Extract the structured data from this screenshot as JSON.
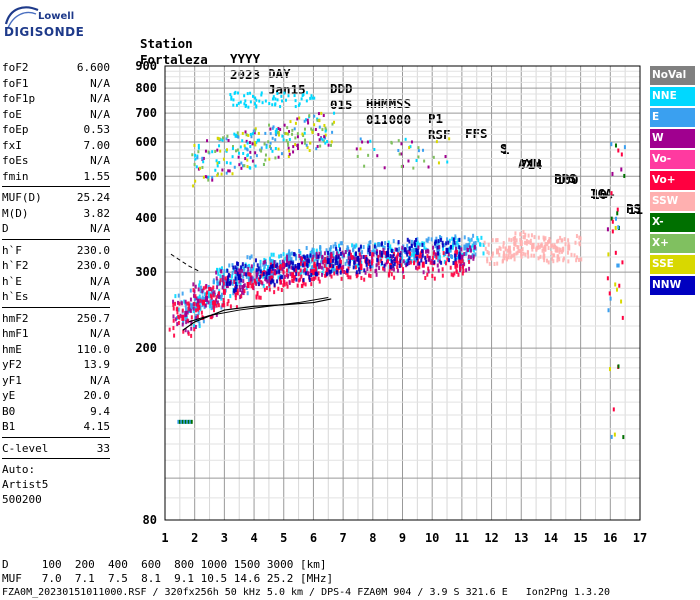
{
  "logo": {
    "top_text": "Lowell",
    "main_text": "DIGISONDE"
  },
  "header": {
    "line1": [
      "Station",
      "YYYY",
      "DAY",
      "DDD",
      "HHMMSS",
      "P1",
      "FFS",
      "S",
      "AXN",
      "PPS",
      "IGA",
      "PS"
    ],
    "line2": [
      "Fortaleza",
      "2023",
      "Jan15",
      "015",
      "011000",
      "RSF",
      "1",
      "714",
      "100",
      "10+",
      "11"
    ]
  },
  "sidebar": {
    "group1": [
      {
        "label": "foF2",
        "value": "6.600"
      },
      {
        "label": "foF1",
        "value": "N/A"
      },
      {
        "label": "foF1p",
        "value": "N/A"
      },
      {
        "label": "foE",
        "value": "N/A"
      },
      {
        "label": "foEp",
        "value": "0.53"
      },
      {
        "label": "fxI",
        "value": "7.00"
      },
      {
        "label": "foEs",
        "value": "N/A"
      },
      {
        "label": "fmin",
        "value": "1.55"
      }
    ],
    "group2": [
      {
        "label": "MUF(D)",
        "value": "25.24"
      },
      {
        "label": "M(D)",
        "value": "3.82"
      },
      {
        "label": "D",
        "value": "N/A"
      }
    ],
    "group3": [
      {
        "label": "h`F",
        "value": "230.0"
      },
      {
        "label": "h`F2",
        "value": "230.0"
      },
      {
        "label": "h`E",
        "value": "N/A"
      },
      {
        "label": "h`Es",
        "value": "N/A"
      }
    ],
    "group4": [
      {
        "label": "hmF2",
        "value": "250.7"
      },
      {
        "label": "hmF1",
        "value": "N/A"
      },
      {
        "label": "hmE",
        "value": "110.0"
      },
      {
        "label": "yF2",
        "value": "13.9"
      },
      {
        "label": "yF1",
        "value": "N/A"
      },
      {
        "label": "yE",
        "value": "20.0"
      },
      {
        "label": "B0",
        "value": "9.4"
      },
      {
        "label": "B1",
        "value": "4.15"
      }
    ],
    "group5": [
      {
        "label": "C-level",
        "value": "33"
      }
    ],
    "auto_lines": [
      "Auto:",
      "Artist5",
      "500200"
    ]
  },
  "legend": [
    {
      "label": "NoVal",
      "color": "#808080"
    },
    {
      "label": "NNE",
      "color": "#00d8ff"
    },
    {
      "label": "E",
      "color": "#3aa0f0"
    },
    {
      "label": "W",
      "color": "#a0008f"
    },
    {
      "label": "Vo-",
      "color": "#ff3aa0"
    },
    {
      "label": "Vo+",
      "color": "#ff0040"
    },
    {
      "label": "SSW",
      "color": "#ffb0b0"
    },
    {
      "label": "X-",
      "color": "#007000"
    },
    {
      "label": "X+",
      "color": "#80c060"
    },
    {
      "label": "SSE",
      "color": "#d8d800"
    },
    {
      "label": "NNW",
      "color": "#0000c0"
    }
  ],
  "chart_data": {
    "type": "scatter",
    "xlim": [
      1,
      17
    ],
    "ylim": [
      80,
      900
    ],
    "x_ticks": [
      1,
      2,
      3,
      4,
      5,
      6,
      7,
      8,
      9,
      10,
      11,
      12,
      13,
      14,
      15,
      16,
      17
    ],
    "y_ticks": [
      80,
      200,
      300,
      400,
      500,
      600,
      700,
      800,
      900
    ],
    "grid": true,
    "y_scale": "log",
    "series": [
      {
        "name": "NNE",
        "color": "#00d8ff",
        "x": [
          1.8,
          2.5,
          3.2,
          4.1,
          4.9,
          5.7,
          6.4,
          7.2,
          8.3,
          9.4,
          10.6,
          11.3
        ],
        "y": [
          245,
          265,
          285,
          300,
          310,
          315,
          320,
          325,
          330,
          335,
          338,
          340
        ]
      },
      {
        "name": "E",
        "color": "#3aa0f0",
        "x": [
          1.9,
          2.6,
          3.4,
          4.2,
          5.0,
          5.6,
          6.3,
          7.0,
          8.0,
          9.1,
          10.2,
          11.1
        ],
        "y": [
          250,
          270,
          290,
          305,
          315,
          320,
          322,
          328,
          332,
          336,
          340,
          342
        ]
      },
      {
        "name": "W",
        "color": "#a0008f",
        "x": [
          1.7,
          2.4,
          3.1,
          3.9,
          4.7,
          5.4,
          6.2,
          6.9,
          7.8,
          8.8,
          9.9,
          11.0
        ],
        "y": [
          240,
          260,
          280,
          290,
          300,
          305,
          310,
          315,
          318,
          320,
          322,
          324
        ]
      },
      {
        "name": "Vo+",
        "color": "#ff0040",
        "x": [
          1.6,
          2.3,
          3.0,
          3.8,
          4.6,
          5.3,
          6.0,
          6.8,
          7.6,
          8.6,
          9.7,
          10.8
        ],
        "y": [
          235,
          255,
          270,
          280,
          290,
          295,
          300,
          305,
          308,
          310,
          312,
          314
        ]
      },
      {
        "name": "NNW",
        "color": "#0000c0",
        "x": [
          3.5,
          4.5,
          5.5,
          6.5,
          7.5,
          8.5,
          9.5,
          10.5
        ],
        "y": [
          292,
          300,
          310,
          318,
          322,
          330,
          334,
          336
        ]
      },
      {
        "name": "SSW",
        "color": "#ffb0b0",
        "x": [
          12.2,
          12.6,
          13.0,
          13.4,
          13.8,
          14.2,
          14.6
        ],
        "y": [
          335,
          340,
          350,
          345,
          340,
          338,
          342
        ]
      }
    ]
  },
  "axis_x_labels": [
    "1",
    "2",
    "3",
    "4",
    "5",
    "6",
    "7",
    "8",
    "9",
    "10",
    "11",
    "12",
    "13",
    "14",
    "15",
    "16",
    "17"
  ],
  "axis_y_labels": [
    "900",
    "800",
    "700",
    "600",
    "500",
    "400",
    "300",
    "200",
    "80"
  ],
  "footer": {
    "line1": "D     100  200  400  600  800 1000 1500 3000 [km]",
    "line2": "MUF   7.0  7.1  7.5  8.1  9.1 10.5 14.6 25.2 [MHz]",
    "line3": "FZA0M_20230151011000.RSF / 320fx256h 50 kHz 5.0 km / DPS-4 FZA0M 904 / 3.9 S 321.6 E   Ion2Png 1.3.20"
  }
}
